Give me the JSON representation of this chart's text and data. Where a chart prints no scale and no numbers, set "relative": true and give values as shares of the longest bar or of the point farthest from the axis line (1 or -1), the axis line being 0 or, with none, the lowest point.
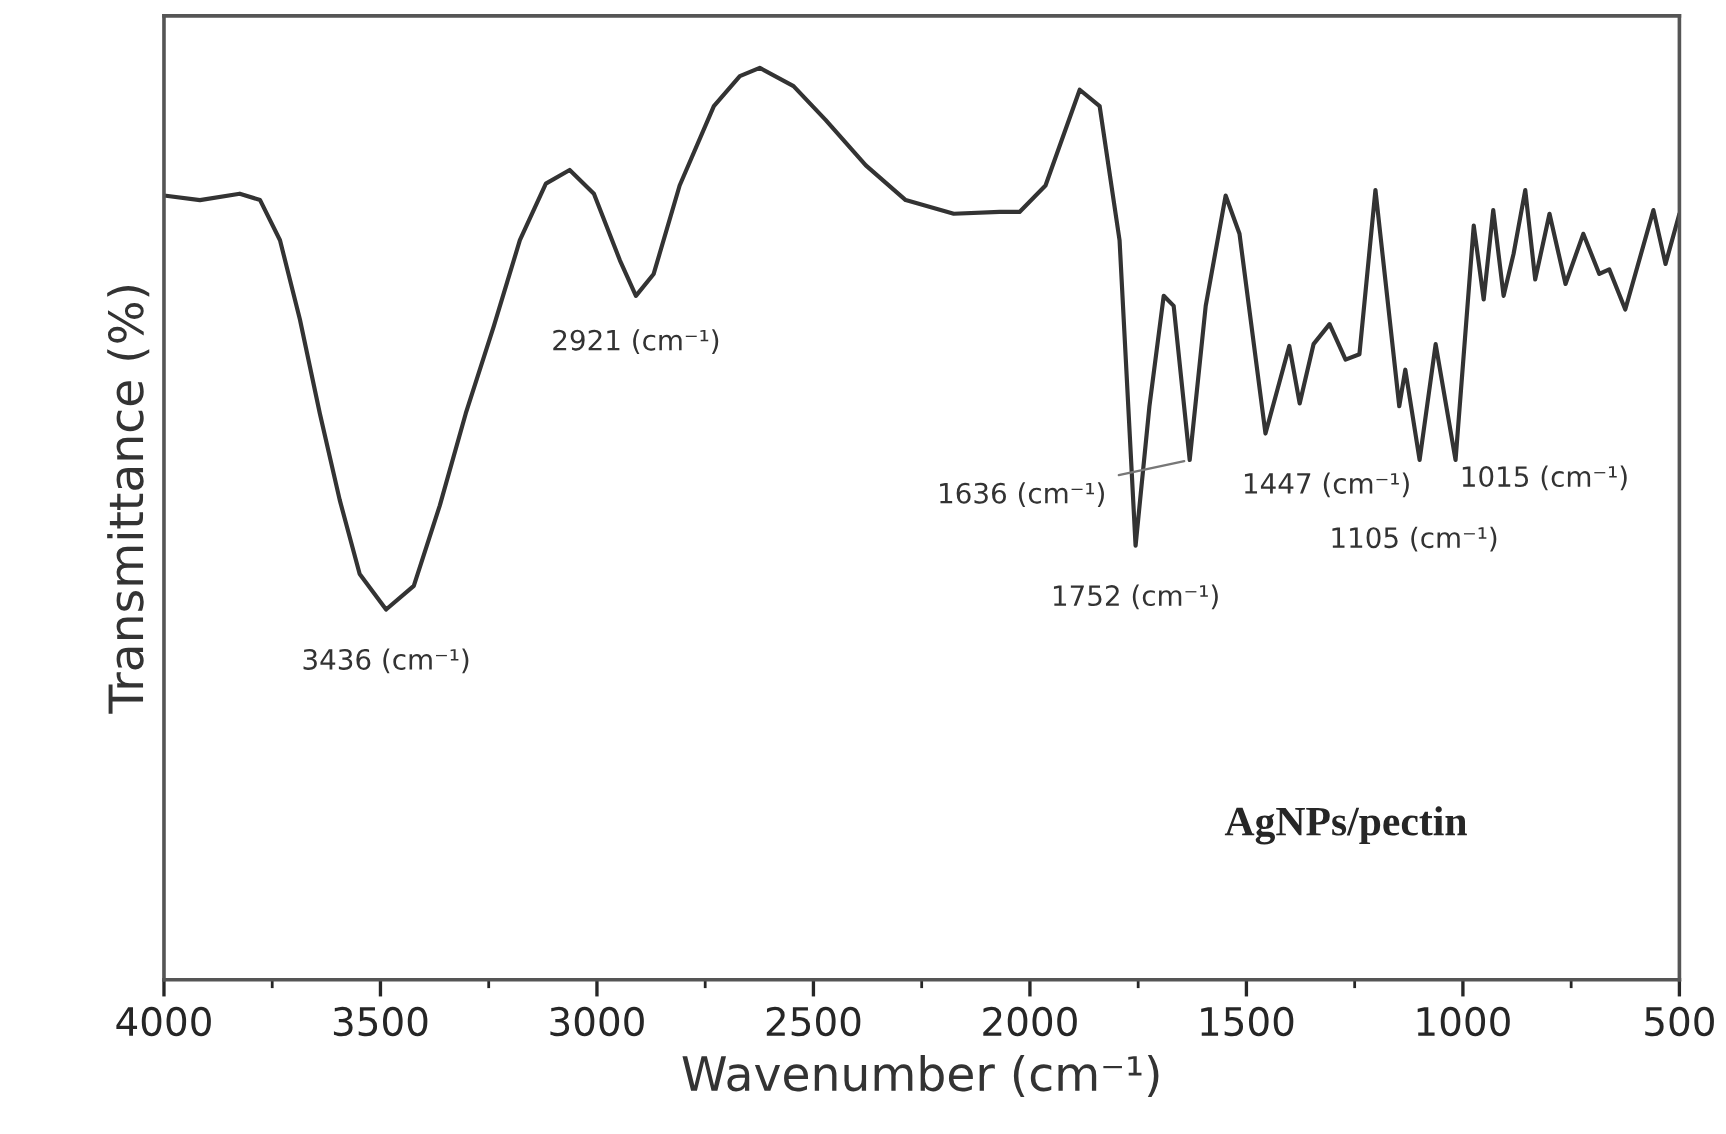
{
  "chart_data": {
    "type": "line",
    "relative": true,
    "xlabel": "Wavenumber (cm⁻¹)",
    "ylabel": "Transmittance (%)",
    "xlim": [
      4000,
      500
    ],
    "xticks": [
      4000,
      3500,
      3000,
      2500,
      2000,
      1500,
      1000,
      500
    ],
    "grid": false,
    "legend": false,
    "series": [
      {
        "color": "#333333",
        "x": [
          4000,
          3917,
          3825,
          3778,
          3732,
          3686,
          3640,
          3594,
          3548,
          3487,
          3423,
          3363,
          3303,
          3238,
          3178,
          3118,
          3063,
          3007,
          2947,
          2910,
          2869,
          2809,
          2730,
          2670,
          2624,
          2546,
          2472,
          2379,
          2287,
          2176,
          2070,
          2024,
          1964,
          1885,
          1839,
          1793,
          1756,
          1724,
          1691,
          1668,
          1631,
          1594,
          1548,
          1516,
          1456,
          1401,
          1377,
          1345,
          1308,
          1271,
          1239,
          1202,
          1147,
          1133,
          1100,
          1063,
          1017,
          975,
          952,
          930,
          906,
          883,
          856,
          833,
          800,
          763,
          722,
          685,
          662,
          625,
          560,
          532,
          500
        ],
        "values": [
          0.86,
          0.855,
          0.862,
          0.855,
          0.811,
          0.724,
          0.621,
          0.526,
          0.445,
          0.406,
          0.432,
          0.52,
          0.621,
          0.717,
          0.811,
          0.873,
          0.888,
          0.862,
          0.789,
          0.75,
          0.774,
          0.871,
          0.958,
          0.991,
          1.0,
          0.98,
          0.943,
          0.893,
          0.855,
          0.84,
          0.842,
          0.842,
          0.871,
          0.976,
          0.958,
          0.811,
          0.476,
          0.629,
          0.75,
          0.739,
          0.57,
          0.739,
          0.86,
          0.818,
          0.599,
          0.695,
          0.632,
          0.697,
          0.719,
          0.68,
          0.686,
          0.866,
          0.629,
          0.669,
          0.57,
          0.697,
          0.57,
          0.827,
          0.746,
          0.844,
          0.75,
          0.796,
          0.866,
          0.768,
          0.84,
          0.763,
          0.818,
          0.774,
          0.779,
          0.735,
          0.844,
          0.785,
          0.84
        ]
      }
    ],
    "annotations": [
      {
        "text": "3436 (cm⁻¹)",
        "x": 3487,
        "y": 0.406
      },
      {
        "text": "2921 (cm⁻¹)",
        "x": 2910,
        "y": 0.75
      },
      {
        "text": "1752 (cm⁻¹)",
        "x": 1756,
        "y": 0.476
      },
      {
        "text": "1636 (cm⁻¹)",
        "x": 1631,
        "y": 0.57
      },
      {
        "text": "1447 (cm⁻¹)",
        "x": 1456,
        "y": 0.599
      },
      {
        "text": "1105 (cm⁻¹)",
        "x": 1100,
        "y": 0.57
      },
      {
        "text": "1015 (cm⁻¹)",
        "x": 1017,
        "y": 0.57
      },
      "AgNPs/pectin"
    ]
  }
}
